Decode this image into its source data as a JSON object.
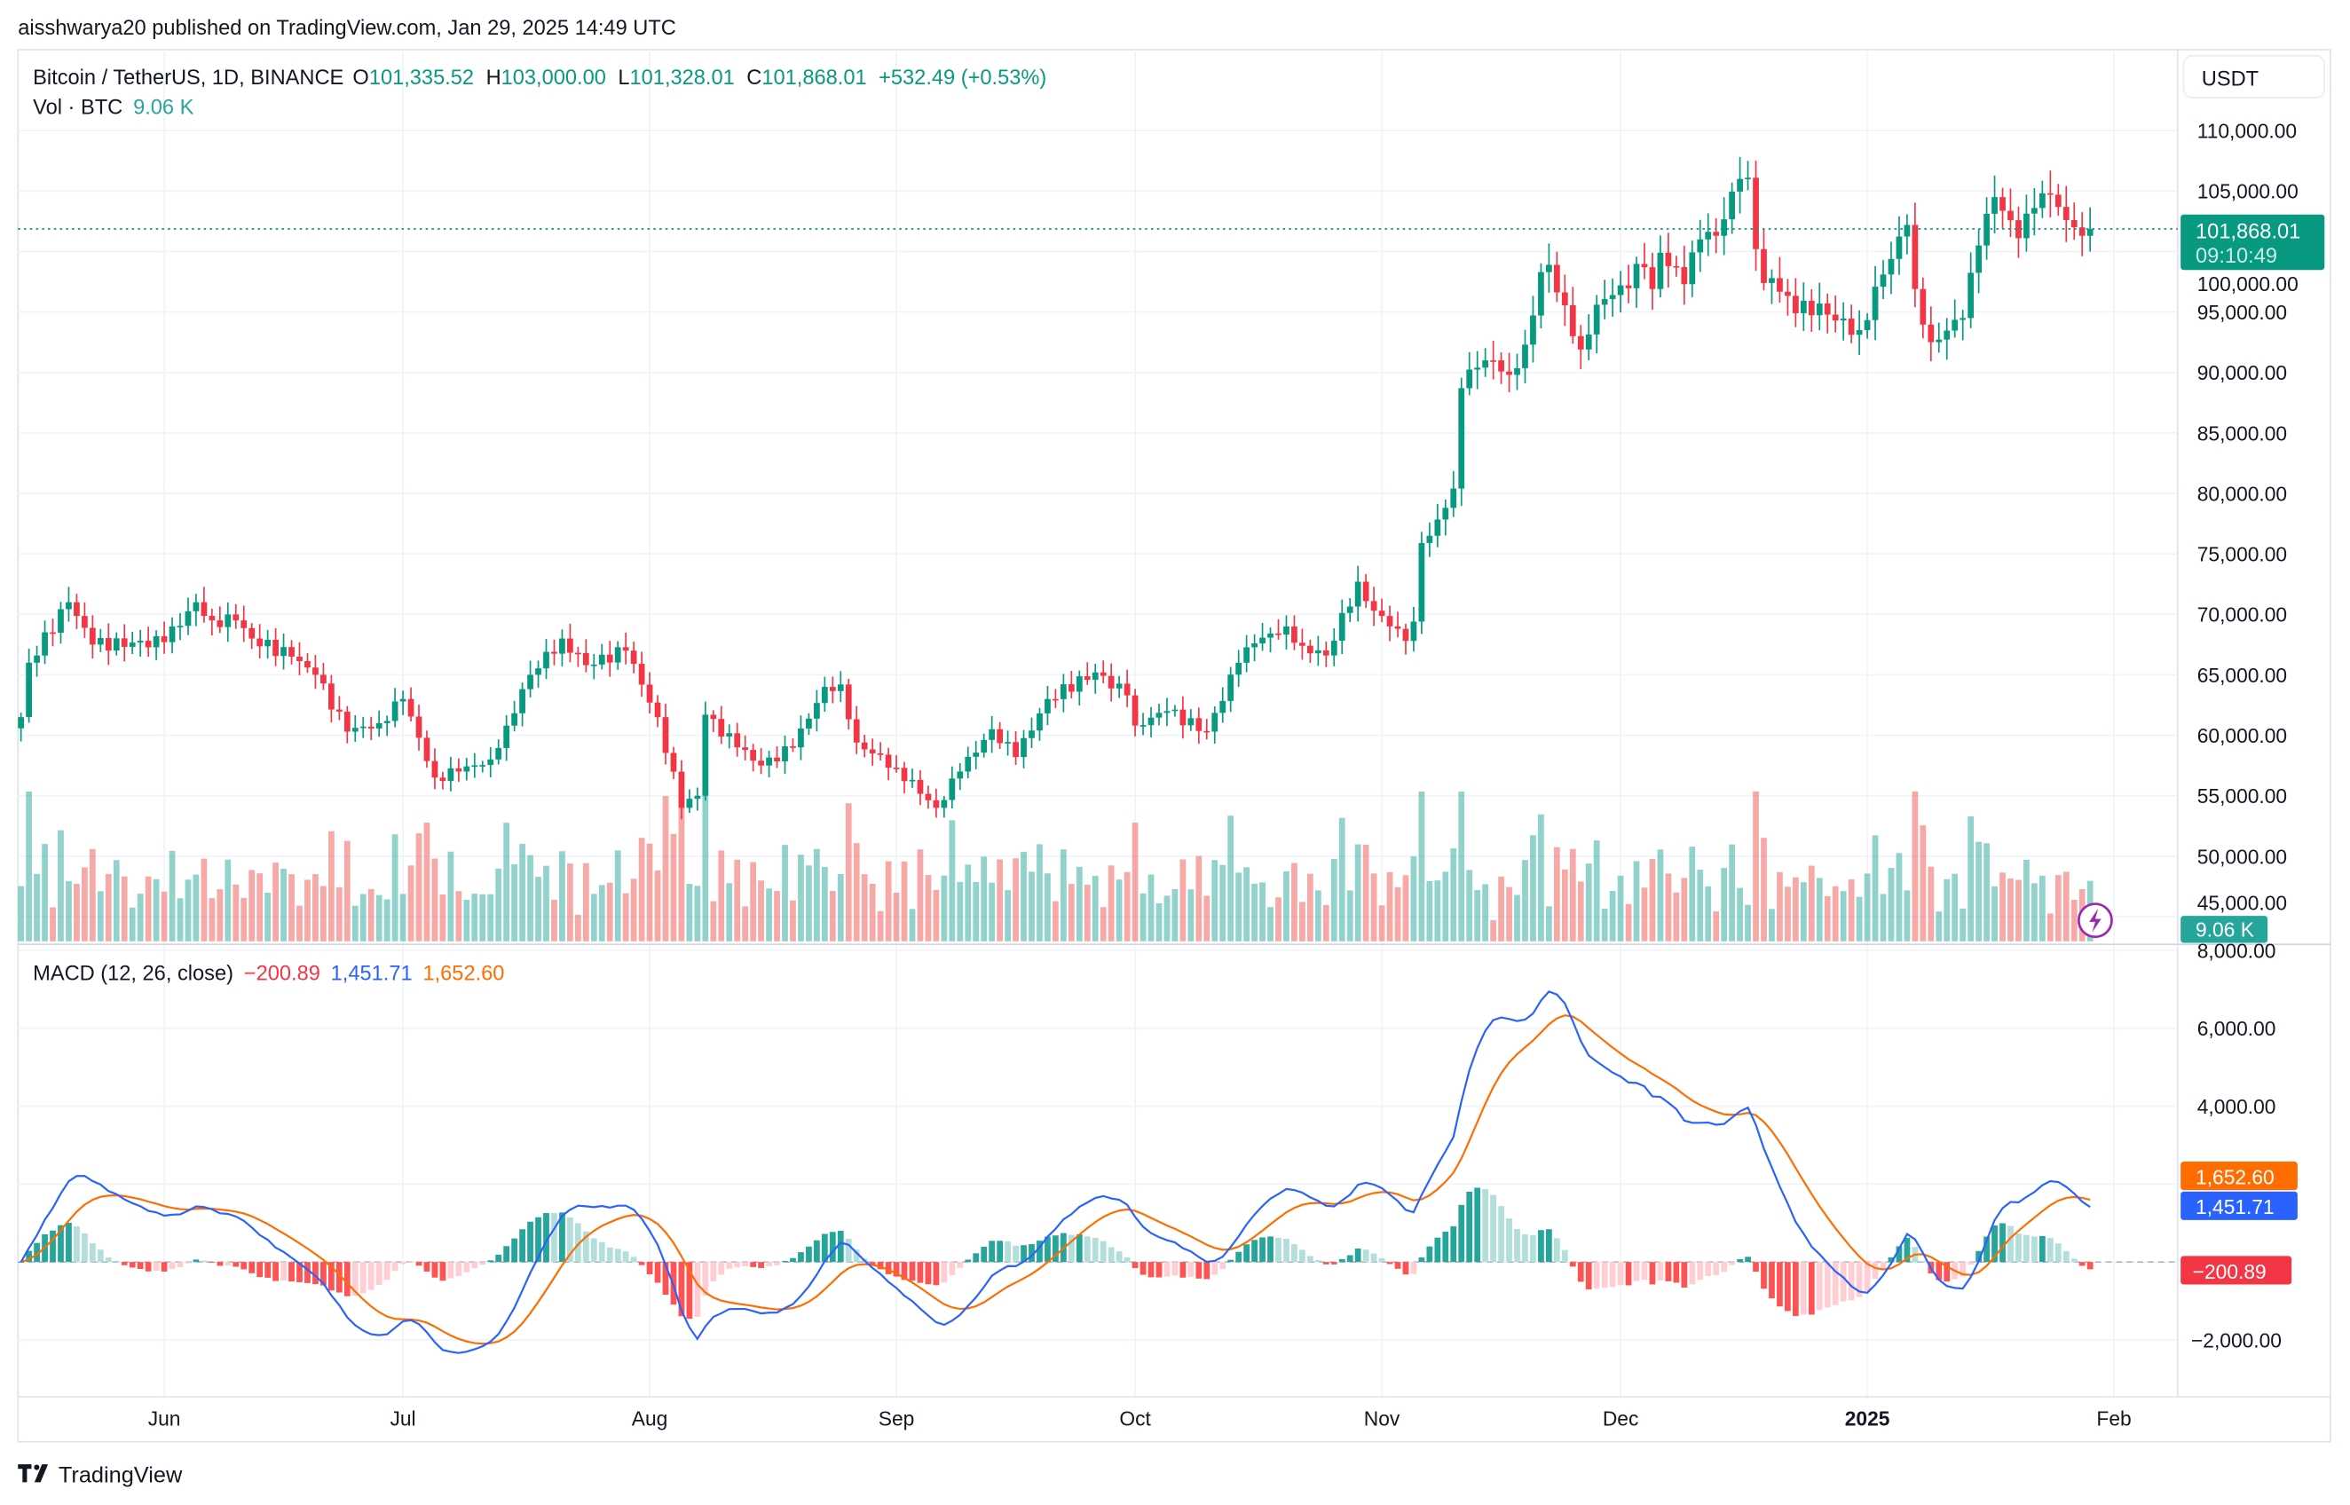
{
  "publish_line": "aisshwarya20 published on TradingView.com, Jan 29, 2025 14:49 UTC",
  "legend": {
    "symbol": "Bitcoin / TetherUS, 1D, BINANCE",
    "o_label": "O",
    "o": "101,335.52",
    "h_label": "H",
    "h": "103,000.00",
    "l_label": "L",
    "l": "101,328.01",
    "c_label": "C",
    "c": "101,868.01",
    "change": "+532.49 (+0.53%)",
    "vol_label": "Vol · BTC",
    "vol": "9.06 K"
  },
  "currency_button": "USDT",
  "last_price": {
    "value": "101,868.01",
    "countdown": "09:10:49"
  },
  "volume_badge": "9.06 K",
  "macd": {
    "title": "MACD (12, 26, close)",
    "hist": "−200.89",
    "macd": "1,451.71",
    "signal": "1,652.60",
    "hist_badge": "−200.89",
    "macd_badge": "1,451.71",
    "signal_badge": "1,652.60"
  },
  "branding": "TradingView",
  "colors": {
    "up": "#089981",
    "down": "#f23645",
    "macd_line": "#2962ff",
    "signal_line": "#ff6d00",
    "hist_up": "#26a69a",
    "hist_up_fade": "#b2dfdb",
    "hist_down": "#ff5252",
    "hist_down_fade": "#ffcdd2",
    "indicator_icon": "#9c27b0"
  },
  "chart_data": {
    "type": "candlestick",
    "symbol": "BTCUSDT",
    "interval": "1D",
    "date_range": [
      "2024-05-14",
      "2025-01-29"
    ],
    "price_ticks": [
      110000,
      105000,
      100000,
      95000,
      90000,
      85000,
      80000,
      75000,
      70000,
      65000,
      60000,
      55000,
      50000,
      45000
    ],
    "price_tick_labels": [
      "110,000.00",
      "105,000.00",
      "100,000.00",
      "95,000.00",
      "90,000.00",
      "85,000.00",
      "80,000.00",
      "75,000.00",
      "70,000.00",
      "65,000.00",
      "60,000.00",
      "55,000.00",
      "50,000.00",
      "45,000.00"
    ],
    "macd_ticks": [
      8000,
      6000,
      4000,
      -2000
    ],
    "macd_tick_labels": [
      "8,000.00",
      "6,000.00",
      "4,000.00",
      "−2,000.00"
    ],
    "x_ticks": [
      {
        "label": "Jun",
        "date": "2024-06-01",
        "bold": false
      },
      {
        "label": "Jul",
        "date": "2024-07-01",
        "bold": false
      },
      {
        "label": "Aug",
        "date": "2024-08-01",
        "bold": false
      },
      {
        "label": "Sep",
        "date": "2024-09-01",
        "bold": false
      },
      {
        "label": "Oct",
        "date": "2024-10-01",
        "bold": false
      },
      {
        "label": "Nov",
        "date": "2024-11-01",
        "bold": false
      },
      {
        "label": "Dec",
        "date": "2024-12-01",
        "bold": false
      },
      {
        "label": "2025",
        "date": "2025-01-01",
        "bold": true
      },
      {
        "label": "Feb",
        "date": "2025-02-01",
        "bold": false
      }
    ],
    "last_close": 101868.01,
    "close_points": [
      [
        "2024-05-14",
        61500
      ],
      [
        "2024-05-15",
        66000
      ],
      [
        "2024-05-20",
        71000
      ],
      [
        "2024-05-23",
        67500
      ],
      [
        "2024-06-01",
        67700
      ],
      [
        "2024-06-05",
        71000
      ],
      [
        "2024-06-07",
        69500
      ],
      [
        "2024-06-10",
        69500
      ],
      [
        "2024-06-12",
        68000
      ],
      [
        "2024-06-17",
        66500
      ],
      [
        "2024-06-20",
        65000
      ],
      [
        "2024-06-24",
        60300
      ],
      [
        "2024-06-28",
        61000
      ],
      [
        "2024-07-01",
        63000
      ],
      [
        "2024-07-05",
        56500
      ],
      [
        "2024-07-08",
        57000
      ],
      [
        "2024-07-12",
        58000
      ],
      [
        "2024-07-14",
        60800
      ],
      [
        "2024-07-17",
        65000
      ],
      [
        "2024-07-21",
        68000
      ],
      [
        "2024-07-24",
        65800
      ],
      [
        "2024-07-29",
        67000
      ],
      [
        "2024-08-02",
        61500
      ],
      [
        "2024-08-05",
        54000
      ],
      [
        "2024-08-07",
        55000
      ],
      [
        "2024-08-08",
        61700
      ],
      [
        "2024-08-12",
        59000
      ],
      [
        "2024-08-15",
        57500
      ],
      [
        "2024-08-19",
        59000
      ],
      [
        "2024-08-23",
        64000
      ],
      [
        "2024-08-25",
        64200
      ],
      [
        "2024-08-27",
        59400
      ],
      [
        "2024-09-01",
        57300
      ],
      [
        "2024-09-06",
        54000
      ],
      [
        "2024-09-09",
        57000
      ],
      [
        "2024-09-13",
        60500
      ],
      [
        "2024-09-16",
        58200
      ],
      [
        "2024-09-20",
        63000
      ],
      [
        "2024-09-26",
        65200
      ],
      [
        "2024-09-30",
        63300
      ],
      [
        "2024-10-01",
        60800
      ],
      [
        "2024-10-05",
        62000
      ],
      [
        "2024-10-10",
        60300
      ],
      [
        "2024-10-14",
        66000
      ],
      [
        "2024-10-16",
        67600
      ],
      [
        "2024-10-20",
        69000
      ],
      [
        "2024-10-22",
        67400
      ],
      [
        "2024-10-25",
        66600
      ],
      [
        "2024-10-29",
        72700
      ],
      [
        "2024-10-31",
        70300
      ],
      [
        "2024-11-03",
        68800
      ],
      [
        "2024-11-04",
        67800
      ],
      [
        "2024-11-05",
        69400
      ],
      [
        "2024-11-06",
        75900
      ],
      [
        "2024-11-07",
        76500
      ],
      [
        "2024-11-10",
        80400
      ],
      [
        "2024-11-11",
        88700
      ],
      [
        "2024-11-13",
        90400
      ],
      [
        "2024-11-15",
        91000
      ],
      [
        "2024-11-17",
        89800
      ],
      [
        "2024-11-19",
        92300
      ],
      [
        "2024-11-21",
        98300
      ],
      [
        "2024-11-22",
        98900
      ],
      [
        "2024-11-25",
        93000
      ],
      [
        "2024-11-26",
        91900
      ],
      [
        "2024-11-28",
        95600
      ],
      [
        "2024-12-01",
        97200
      ],
      [
        "2024-12-04",
        98700
      ],
      [
        "2024-12-05",
        96900
      ],
      [
        "2024-12-06",
        99900
      ],
      [
        "2024-12-09",
        97300
      ],
      [
        "2024-12-11",
        101000
      ],
      [
        "2024-12-13",
        101300
      ],
      [
        "2024-12-16",
        106000
      ],
      [
        "2024-12-17",
        106100
      ],
      [
        "2024-12-18",
        100200
      ],
      [
        "2024-12-19",
        97400
      ],
      [
        "2024-12-20",
        97800
      ],
      [
        "2024-12-23",
        94900
      ],
      [
        "2024-12-26",
        95700
      ],
      [
        "2024-12-28",
        94300
      ],
      [
        "2024-12-31",
        93500
      ],
      [
        "2025-01-03",
        98100
      ],
      [
        "2025-01-06",
        102200
      ],
      [
        "2025-01-07",
        96900
      ],
      [
        "2025-01-09",
        92500
      ],
      [
        "2025-01-13",
        94500
      ],
      [
        "2025-01-15",
        100500
      ],
      [
        "2025-01-17",
        104500
      ],
      [
        "2025-01-20",
        101100
      ],
      [
        "2025-01-22",
        103600
      ],
      [
        "2025-01-24",
        104700
      ],
      [
        "2025-01-26",
        102600
      ],
      [
        "2025-01-27",
        102000
      ],
      [
        "2025-01-28",
        101300
      ],
      [
        "2025-01-29",
        101868.01
      ]
    ]
  }
}
